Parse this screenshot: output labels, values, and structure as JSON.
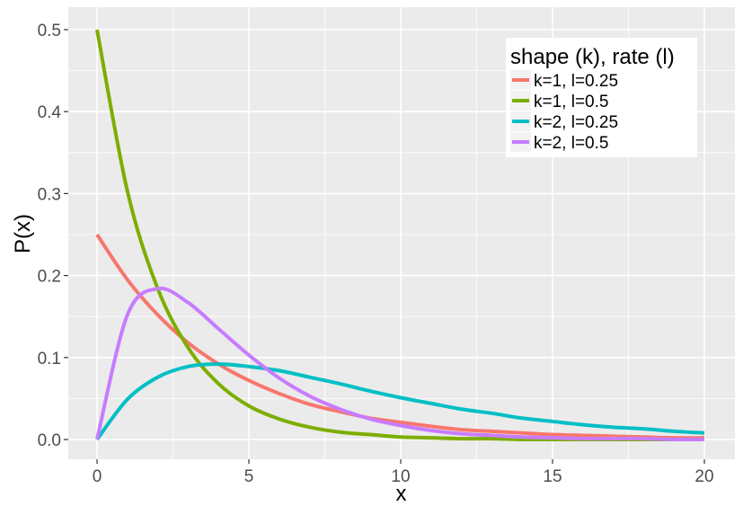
{
  "chart_data": {
    "type": "line",
    "title": "",
    "xlabel": "x",
    "ylabel": "P(x)",
    "xlim": [
      0,
      20
    ],
    "ylim": [
      0,
      0.5
    ],
    "xticks": [
      0,
      5,
      10,
      15,
      20
    ],
    "yticks": [
      0.0,
      0.1,
      0.2,
      0.3,
      0.4,
      0.5
    ],
    "xtick_labels": [
      "0",
      "5",
      "10",
      "15",
      "20"
    ],
    "ytick_labels": [
      "0.0",
      "0.1",
      "0.2",
      "0.3",
      "0.4",
      "0.5"
    ],
    "grid": true,
    "legend": {
      "title": "shape (k), rate (l)",
      "placement": "top-right"
    },
    "x": [
      0,
      1,
      2,
      3,
      4,
      5,
      6,
      7,
      8,
      9,
      10,
      11,
      12,
      13,
      14,
      15,
      16,
      17,
      18,
      19,
      20
    ],
    "series": [
      {
        "name": "k=1, l=0.25",
        "color": "#F8766D",
        "values": [
          0.25,
          0.195,
          0.152,
          0.118,
          0.092,
          0.072,
          0.056,
          0.043,
          0.034,
          0.026,
          0.021,
          0.016,
          0.012,
          0.01,
          0.008,
          0.006,
          0.005,
          0.004,
          0.003,
          0.002,
          0.002
        ]
      },
      {
        "name": "k=1, l=0.5",
        "color": "#7CAE00",
        "values": [
          0.5,
          0.303,
          0.184,
          0.112,
          0.068,
          0.041,
          0.025,
          0.015,
          0.009,
          0.006,
          0.003,
          0.002,
          0.001,
          0.001,
          0.0,
          0.0,
          0.0,
          0.0,
          0.0,
          0.0,
          0.0
        ]
      },
      {
        "name": "k=2, l=0.25",
        "color": "#00BFC4",
        "values": [
          0.0,
          0.049,
          0.076,
          0.089,
          0.092,
          0.089,
          0.084,
          0.076,
          0.068,
          0.059,
          0.051,
          0.044,
          0.037,
          0.032,
          0.026,
          0.022,
          0.018,
          0.015,
          0.013,
          0.01,
          0.008
        ]
      },
      {
        "name": "k=2, l=0.5",
        "color": "#C77CFF",
        "values": [
          0.0,
          0.152,
          0.184,
          0.167,
          0.135,
          0.103,
          0.075,
          0.053,
          0.037,
          0.025,
          0.017,
          0.011,
          0.007,
          0.005,
          0.003,
          0.002,
          0.001,
          0.001,
          0.001,
          0.0,
          0.0
        ]
      }
    ]
  }
}
